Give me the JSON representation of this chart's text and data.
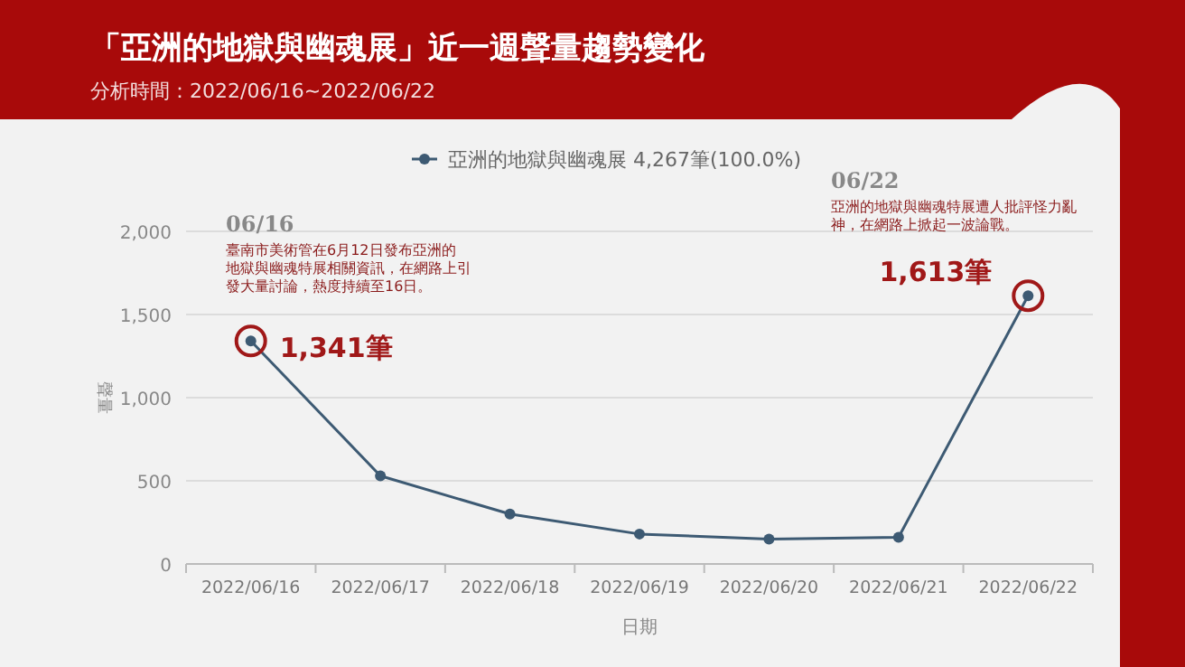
{
  "chart_data": {
    "type": "line",
    "title": "「亞洲的地獄與幽魂展」近一週聲量趨勢變化",
    "subtitle": "分析時間：2022/06/16~2022/06/22",
    "xlabel": "日期",
    "ylabel": "聲量",
    "categories": [
      "2022/06/16",
      "2022/06/17",
      "2022/06/18",
      "2022/06/19",
      "2022/06/20",
      "2022/06/21",
      "2022/06/22"
    ],
    "series": [
      {
        "name": "亞洲的地獄與幽魂展 4,267筆(100.0%)",
        "color": "#3d5a73",
        "values": [
          1341,
          530,
          300,
          180,
          150,
          160,
          1613
        ]
      }
    ],
    "ylim": [
      0,
      2000
    ],
    "yticks": [
      {
        "value": 0,
        "label": "0"
      },
      {
        "value": 500,
        "label": "500"
      },
      {
        "value": 1000,
        "label": "1,000"
      },
      {
        "value": 1500,
        "label": "1,500"
      },
      {
        "value": 2000,
        "label": "2,000"
      }
    ],
    "grid": "y",
    "legend": "top",
    "marker": "circle",
    "line_style": "solid",
    "annotations": [
      "06/16",
      "臺南市美術管在6月12日發布亞洲的地獄與幽魂特展相關資訊，在網路上引發大量討論，熱度持續至16日。",
      {
        "text": "1,341筆",
        "x": "2022/06/16",
        "y": 1341
      },
      "06/22",
      "亞洲的地獄與幽魂特展遭人批評怪力亂神，在網路上掀起一波論戰。",
      {
        "text": "1,613筆",
        "x": "2022/06/22",
        "y": 1613
      }
    ]
  }
}
